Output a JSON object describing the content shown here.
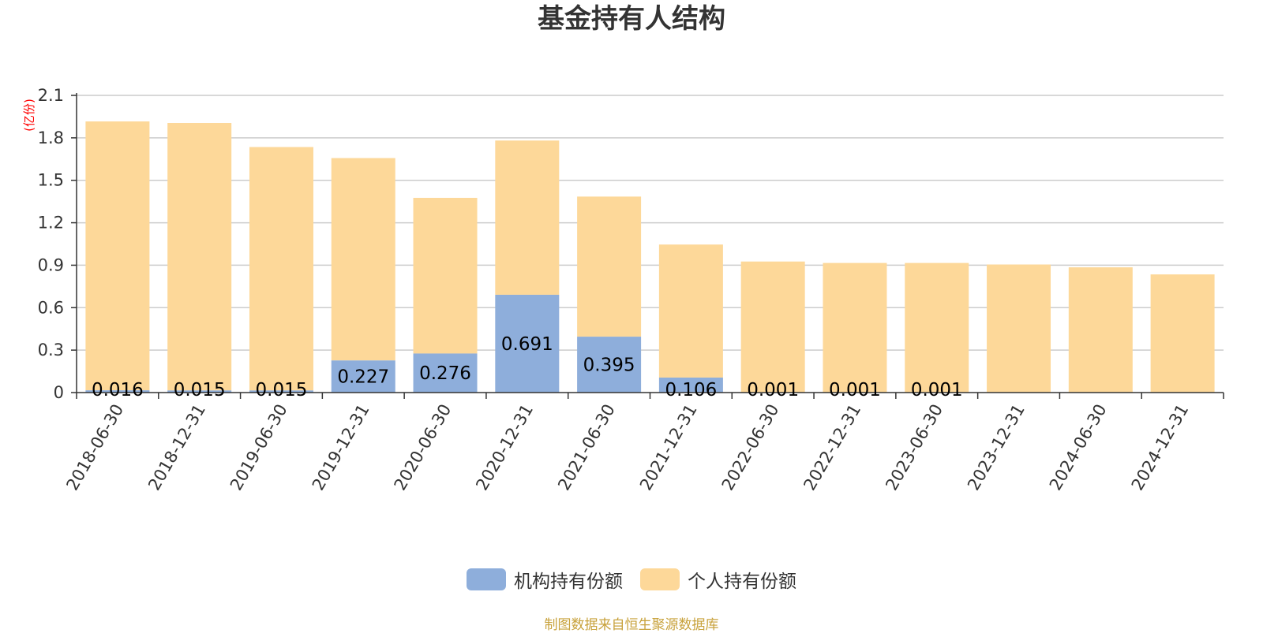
{
  "chart_data": {
    "type": "bar",
    "stacked": true,
    "title": "基金持有人结构",
    "ylabel": "(亿份)",
    "ylim": [
      0,
      2.1
    ],
    "yticks": [
      "0",
      "0.3",
      "0.6",
      "0.9",
      "1.2",
      "1.5",
      "1.8",
      "2.1"
    ],
    "grid": true,
    "legend_position": "bottom",
    "categories": [
      "2018-06-30",
      "2018-12-31",
      "2019-06-30",
      "2019-12-31",
      "2020-06-30",
      "2020-12-31",
      "2021-06-30",
      "2021-12-31",
      "2022-06-30",
      "2022-12-31",
      "2023-06-30",
      "2023-12-31",
      "2024-06-30",
      "2024-12-31"
    ],
    "series": [
      {
        "name": "机构持有份额",
        "color": "#8eaedb",
        "values": [
          0.016,
          0.015,
          0.015,
          0.227,
          0.276,
          0.691,
          0.395,
          0.106,
          0.001,
          0.001,
          0.001,
          0,
          0,
          0
        ],
        "labels": [
          "0.016",
          "0.015",
          "0.015",
          "0.227",
          "0.276",
          "0.691",
          "0.395",
          "0.106",
          "0.001",
          "0.001",
          "0.001",
          "",
          "",
          ""
        ]
      },
      {
        "name": "个人持有份额",
        "color": "#fdd899",
        "values": [
          1.9,
          1.89,
          1.72,
          1.43,
          1.1,
          1.09,
          0.99,
          0.94,
          0.925,
          0.915,
          0.915,
          0.905,
          0.885,
          0.835
        ]
      }
    ],
    "source": "制图数据来自恒生聚源数据库"
  },
  "colors": {
    "title": "#333333",
    "unit": "#ff0000",
    "source": "#c8a23c",
    "grid": "#cccccc",
    "axis": "#333333"
  }
}
